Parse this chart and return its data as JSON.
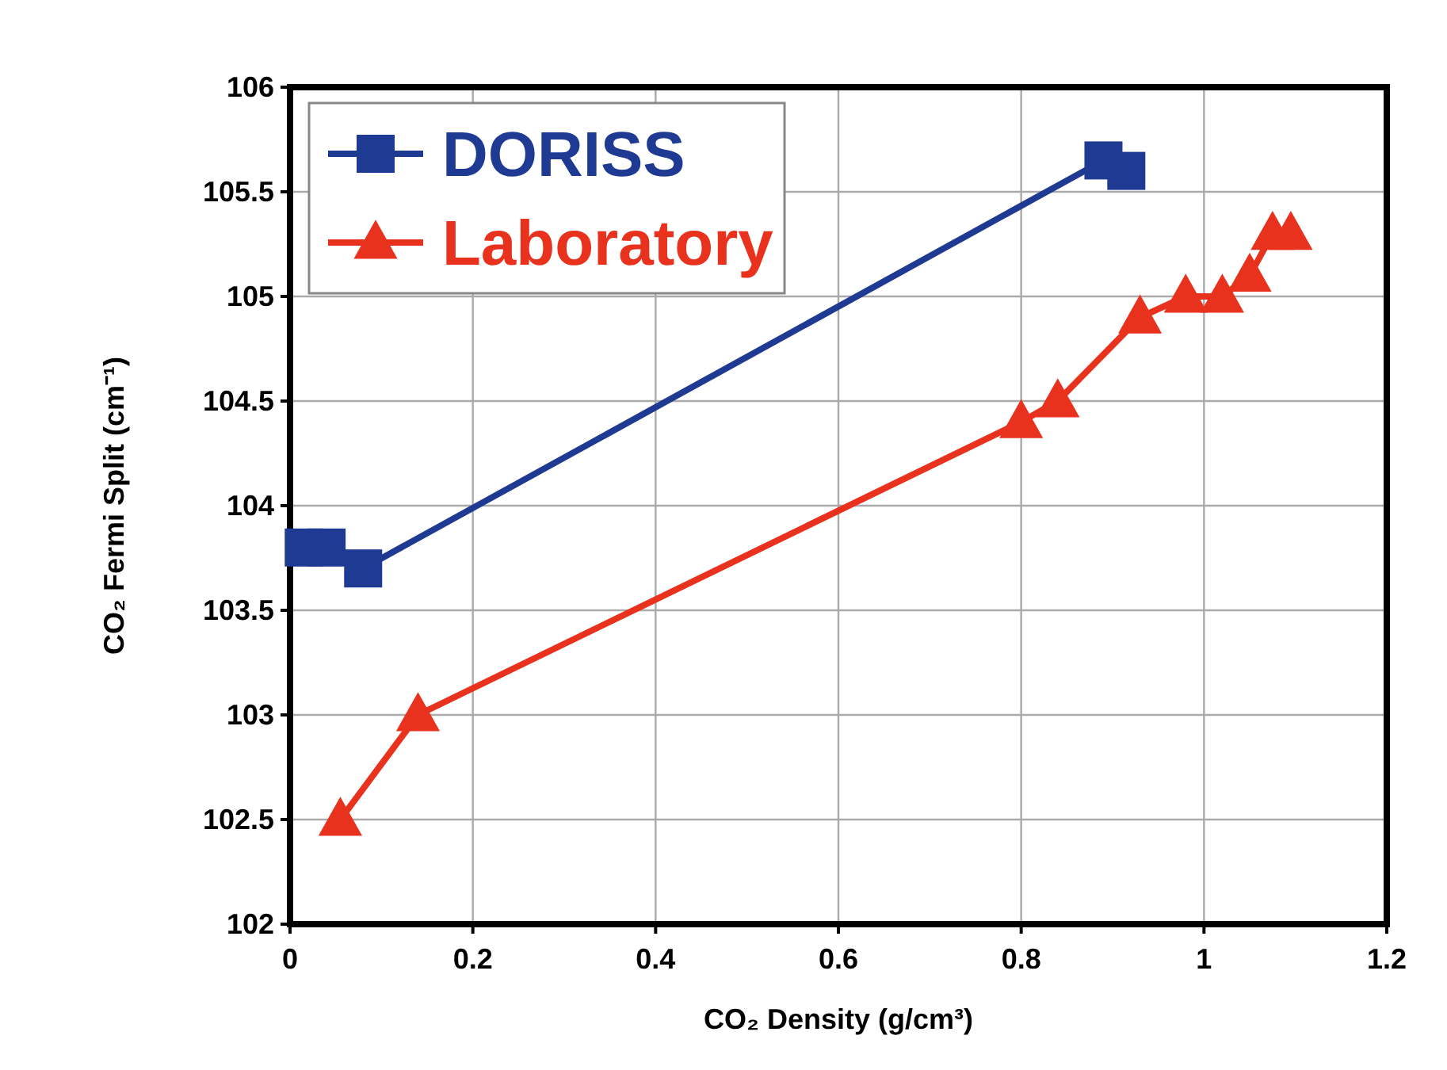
{
  "chart_data": {
    "type": "line",
    "xlabel": "CO₂ Density (g/cm³)",
    "ylabel": "CO₂ Fermi Split (cm⁻¹)",
    "xlim": [
      0,
      1.2
    ],
    "xticks": [
      0,
      0.2,
      0.4,
      0.6,
      0.8,
      1,
      1.2
    ],
    "ylim": [
      102,
      106
    ],
    "yticks": [
      102,
      102.5,
      103,
      103.5,
      104,
      104.5,
      105,
      105.5,
      106
    ],
    "grid": true,
    "legend": "top left",
    "line_style": "solid",
    "series": [
      {
        "name": "DORISS",
        "color": "#1f3a93",
        "marker": "square",
        "x": [
          0.015,
          0.04,
          0.08,
          0.89,
          0.915
        ],
        "values": [
          103.8,
          103.8,
          103.7,
          105.65,
          105.6
        ]
      },
      {
        "name": "Laboratory",
        "color": "#e8321e",
        "marker": "triangle",
        "x": [
          0.055,
          0.14,
          0.8,
          0.84,
          0.93,
          0.98,
          1.02,
          1.05,
          1.075,
          1.095
        ],
        "values": [
          102.5,
          103.0,
          104.4,
          104.5,
          104.9,
          105.0,
          105.0,
          105.1,
          105.3,
          105.3
        ]
      }
    ]
  }
}
